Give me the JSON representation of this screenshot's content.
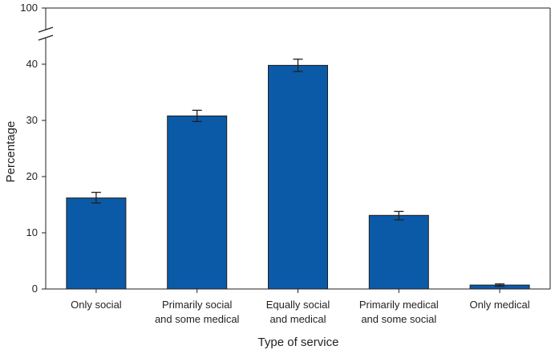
{
  "chart_data": {
    "type": "bar",
    "title": "",
    "xlabel": "Type of service",
    "ylabel": "Percentage",
    "categories": [
      [
        "Only social"
      ],
      [
        "Primarily social",
        "and some medical"
      ],
      [
        "Equally social",
        "and medical"
      ],
      [
        "Primarily medical",
        "and some social"
      ],
      [
        "Only medical"
      ]
    ],
    "values": [
      16.2,
      30.8,
      39.8,
      13.1,
      0.7
    ],
    "error_low": [
      15.3,
      29.8,
      38.7,
      12.3,
      0.5
    ],
    "error_high": [
      17.2,
      31.8,
      40.9,
      13.8,
      0.9
    ],
    "yticks": [
      0,
      10,
      20,
      30,
      40
    ],
    "ytick_labels": [
      "0",
      "10",
      "20",
      "30",
      "40"
    ],
    "ybreak_top_label": "100",
    "ylim": [
      0,
      40
    ],
    "bar_color": "#0b5aa7",
    "axis_break": true
  }
}
